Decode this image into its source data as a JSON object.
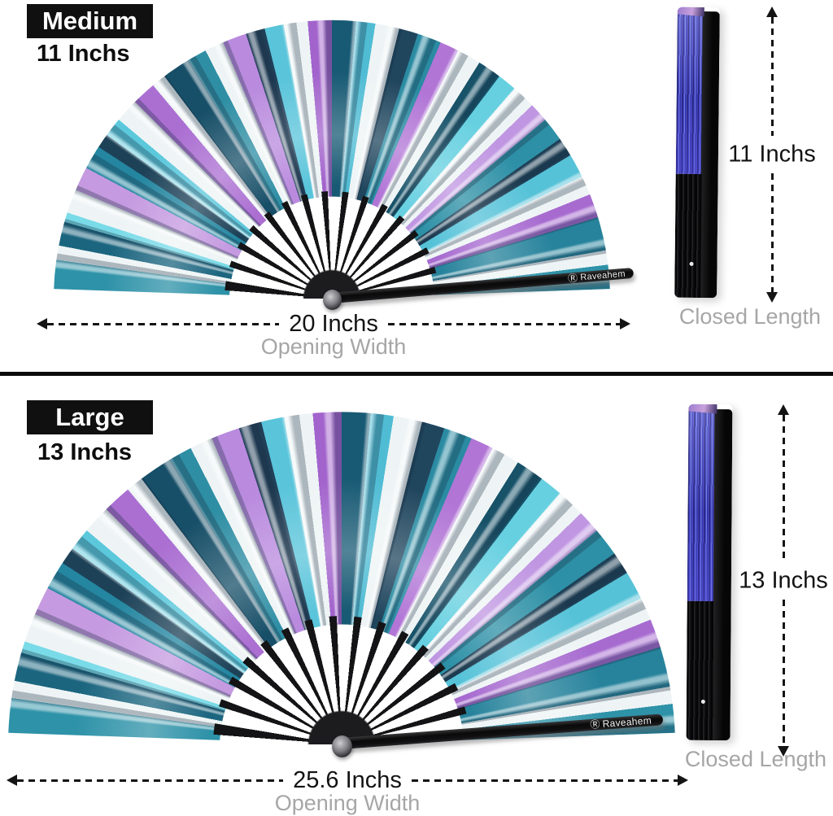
{
  "image": {
    "background": "#ffffff",
    "divider_color": "#0b0b0b"
  },
  "brand": {
    "logo_glyph": "Ⓡ",
    "name": "Raveahem"
  },
  "palette": {
    "badge_bg": "#101010",
    "badge_text": "#ffffff",
    "measure_text": "#131313",
    "caption_text": "#a6a6a6",
    "fan_teal": "#2e92a8",
    "fan_deep_teal": "#175269",
    "fan_navy": "#1e4056",
    "fan_cyan": "#5cc8dc",
    "fan_white": "#eef4f5",
    "fan_lavender": "#c59ae0",
    "fan_purple": "#a76bd0",
    "closed_fan_blue": "#4347cc",
    "closed_fan_indigo": "#23237e",
    "closed_fan_violet": "#8084f0",
    "closed_fan_cap_pink": "#c9a2dc",
    "stick_black": "#0a0a0a"
  },
  "sections": [
    {
      "size_label": "Medium",
      "size_value": "11 Inchs",
      "opening_width": "20 Inchs",
      "opening_caption": "Opening Width",
      "closed_value": "11 Inchs",
      "closed_caption": "Closed Length"
    },
    {
      "size_label": "Large",
      "size_value": "13 Inchs",
      "opening_width": "25.6 Inchs",
      "opening_caption": "Opening Width",
      "closed_value": "13 Inchs",
      "closed_caption": "Closed Length"
    }
  ]
}
